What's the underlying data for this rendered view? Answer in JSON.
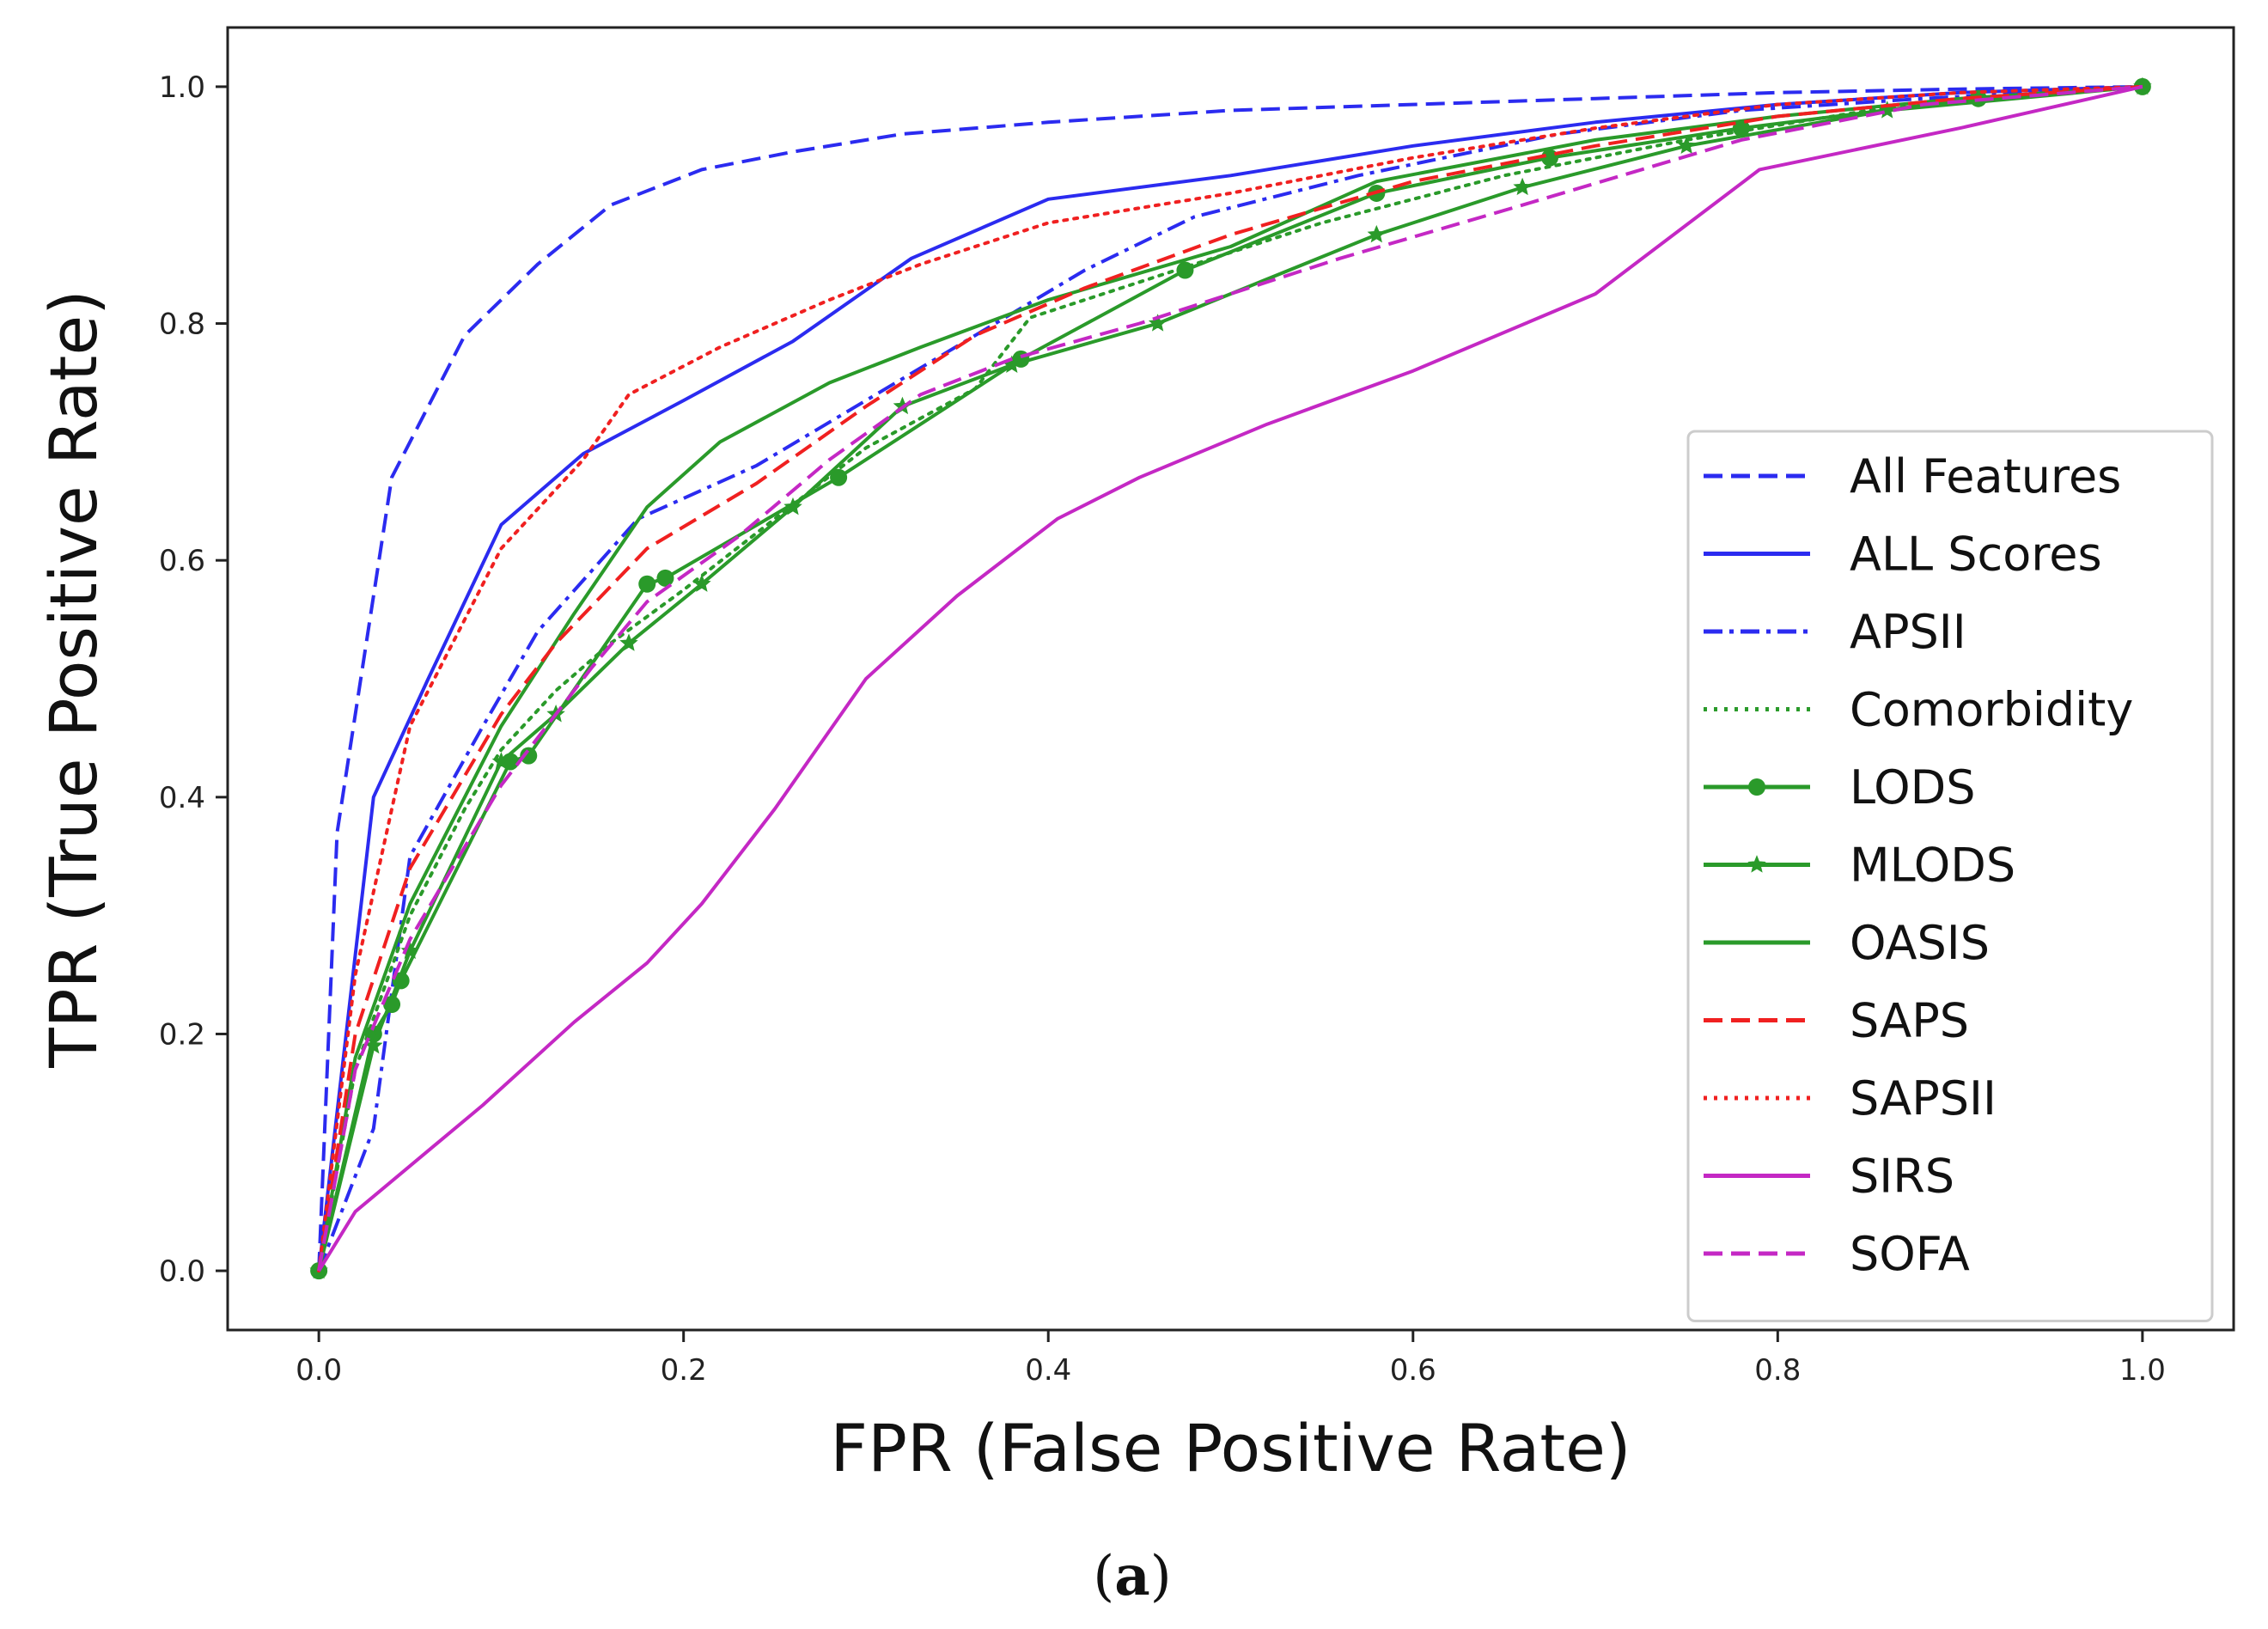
{
  "chart_data": {
    "type": "line",
    "xlabel": "FPR (False Positive Rate)",
    "ylabel": "TPR (True Positive Rate)",
    "xlim": [
      -0.05,
      1.05
    ],
    "ylim": [
      -0.05,
      1.05
    ],
    "xticks": [
      "0.0",
      "0.2",
      "0.4",
      "0.6",
      "0.8",
      "1.0"
    ],
    "yticks": [
      "0.0",
      "0.2",
      "0.4",
      "0.6",
      "0.8",
      "1.0"
    ],
    "caption_label": "a",
    "legend_position": "lower-right",
    "series": [
      {
        "name": "All Features",
        "color": "#2b2bf0",
        "dash": "dashed",
        "marker": "none",
        "x": [
          0,
          0.01,
          0.04,
          0.08,
          0.12,
          0.16,
          0.21,
          0.26,
          0.32,
          0.4,
          0.5,
          0.6,
          0.7,
          0.8,
          0.9,
          1.0
        ],
        "y": [
          0,
          0.37,
          0.67,
          0.79,
          0.85,
          0.9,
          0.93,
          0.945,
          0.96,
          0.97,
          0.98,
          0.985,
          0.99,
          0.995,
          0.998,
          1.0
        ]
      },
      {
        "name": "ALL Scores",
        "color": "#2b2bf0",
        "dash": "solid",
        "marker": "none",
        "x": [
          0,
          0.03,
          0.06,
          0.1,
          0.145,
          0.2,
          0.26,
          0.325,
          0.4,
          0.5,
          0.6,
          0.7,
          0.8,
          0.9,
          1.0
        ],
        "y": [
          0,
          0.4,
          0.5,
          0.63,
          0.69,
          0.735,
          0.785,
          0.855,
          0.905,
          0.925,
          0.95,
          0.97,
          0.985,
          0.995,
          1.0
        ]
      },
      {
        "name": "APSII",
        "color": "#2b2bf0",
        "dash": "dashdot",
        "marker": "none",
        "x": [
          0,
          0.03,
          0.05,
          0.09,
          0.12,
          0.175,
          0.24,
          0.3,
          0.36,
          0.42,
          0.48,
          0.57,
          0.68,
          0.78,
          0.88,
          1.0
        ],
        "y": [
          0,
          0.12,
          0.35,
          0.46,
          0.54,
          0.635,
          0.68,
          0.735,
          0.79,
          0.845,
          0.89,
          0.925,
          0.96,
          0.98,
          0.99,
          1.0
        ]
      },
      {
        "name": "Comorbidity",
        "color": "#2a9a2a",
        "dash": "dotted",
        "marker": "none",
        "x": [
          0,
          0.02,
          0.05,
          0.08,
          0.1,
          0.13,
          0.16,
          0.2,
          0.25,
          0.3,
          0.36,
          0.39,
          0.45,
          0.55,
          0.65,
          0.75,
          0.85,
          1.0
        ],
        "y": [
          0,
          0.17,
          0.3,
          0.39,
          0.44,
          0.49,
          0.53,
          0.575,
          0.635,
          0.695,
          0.745,
          0.805,
          0.835,
          0.885,
          0.925,
          0.955,
          0.98,
          1.0
        ]
      },
      {
        "name": "LODS",
        "color": "#2a9a2a",
        "dash": "solid",
        "marker": "dot",
        "x": [
          0,
          0.03,
          0.04,
          0.045,
          0.105,
          0.115,
          0.18,
          0.19,
          0.285,
          0.385,
          0.475,
          0.58,
          0.675,
          0.78,
          0.91,
          1.0
        ],
        "y": [
          0,
          0.2,
          0.225,
          0.245,
          0.43,
          0.435,
          0.58,
          0.585,
          0.67,
          0.77,
          0.845,
          0.91,
          0.94,
          0.965,
          0.99,
          1.0
        ]
      },
      {
        "name": "MLODS",
        "color": "#2a9a2a",
        "dash": "solid",
        "marker": "star",
        "x": [
          0,
          0.03,
          0.05,
          0.1,
          0.13,
          0.17,
          0.21,
          0.26,
          0.32,
          0.38,
          0.46,
          0.58,
          0.66,
          0.75,
          0.86,
          1.0
        ],
        "y": [
          0,
          0.19,
          0.27,
          0.43,
          0.47,
          0.53,
          0.58,
          0.645,
          0.73,
          0.765,
          0.8,
          0.875,
          0.915,
          0.95,
          0.98,
          1.0
        ]
      },
      {
        "name": "OASIS",
        "color": "#2a9a2a",
        "dash": "solid",
        "marker": "none",
        "x": [
          0,
          0.02,
          0.05,
          0.1,
          0.14,
          0.18,
          0.22,
          0.28,
          0.33,
          0.4,
          0.5,
          0.58,
          0.7,
          0.8,
          0.9,
          1.0
        ],
        "y": [
          0,
          0.18,
          0.31,
          0.46,
          0.555,
          0.645,
          0.7,
          0.75,
          0.78,
          0.82,
          0.865,
          0.92,
          0.955,
          0.975,
          0.99,
          1.0
        ]
      },
      {
        "name": "SAPS",
        "color": "#f02020",
        "dash": "dashed",
        "marker": "none",
        "x": [
          0,
          0.02,
          0.05,
          0.1,
          0.13,
          0.18,
          0.24,
          0.3,
          0.36,
          0.42,
          0.5,
          0.6,
          0.7,
          0.8,
          0.9,
          1.0
        ],
        "y": [
          0,
          0.2,
          0.34,
          0.47,
          0.53,
          0.61,
          0.665,
          0.73,
          0.79,
          0.83,
          0.875,
          0.92,
          0.95,
          0.975,
          0.99,
          1.0
        ]
      },
      {
        "name": "SAPSII",
        "color": "#f02020",
        "dash": "dotted",
        "marker": "none",
        "x": [
          0,
          0.02,
          0.05,
          0.1,
          0.145,
          0.17,
          0.22,
          0.28,
          0.33,
          0.4,
          0.5,
          0.6,
          0.7,
          0.8,
          0.9,
          1.0
        ],
        "y": [
          0,
          0.25,
          0.46,
          0.61,
          0.685,
          0.74,
          0.78,
          0.82,
          0.85,
          0.885,
          0.91,
          0.94,
          0.965,
          0.985,
          0.995,
          1.0
        ]
      },
      {
        "name": "SIRS",
        "color": "#c428c4",
        "dash": "solid",
        "marker": "none",
        "x": [
          0,
          0.02,
          0.09,
          0.14,
          0.18,
          0.21,
          0.25,
          0.3,
          0.35,
          0.405,
          0.45,
          0.52,
          0.6,
          0.7,
          0.79,
          0.9,
          1.0
        ],
        "y": [
          0,
          0.05,
          0.14,
          0.21,
          0.26,
          0.31,
          0.39,
          0.5,
          0.57,
          0.635,
          0.67,
          0.715,
          0.76,
          0.825,
          0.93,
          0.965,
          1.0
        ]
      },
      {
        "name": "SOFA",
        "color": "#c428c4",
        "dash": "dashed",
        "marker": "none",
        "x": [
          0,
          0.02,
          0.05,
          0.1,
          0.15,
          0.18,
          0.23,
          0.28,
          0.33,
          0.38,
          0.45,
          0.56,
          0.66,
          0.78,
          0.88,
          1.0
        ],
        "y": [
          0,
          0.17,
          0.28,
          0.41,
          0.51,
          0.565,
          0.62,
          0.685,
          0.74,
          0.77,
          0.8,
          0.855,
          0.9,
          0.955,
          0.985,
          1.0
        ]
      }
    ]
  }
}
